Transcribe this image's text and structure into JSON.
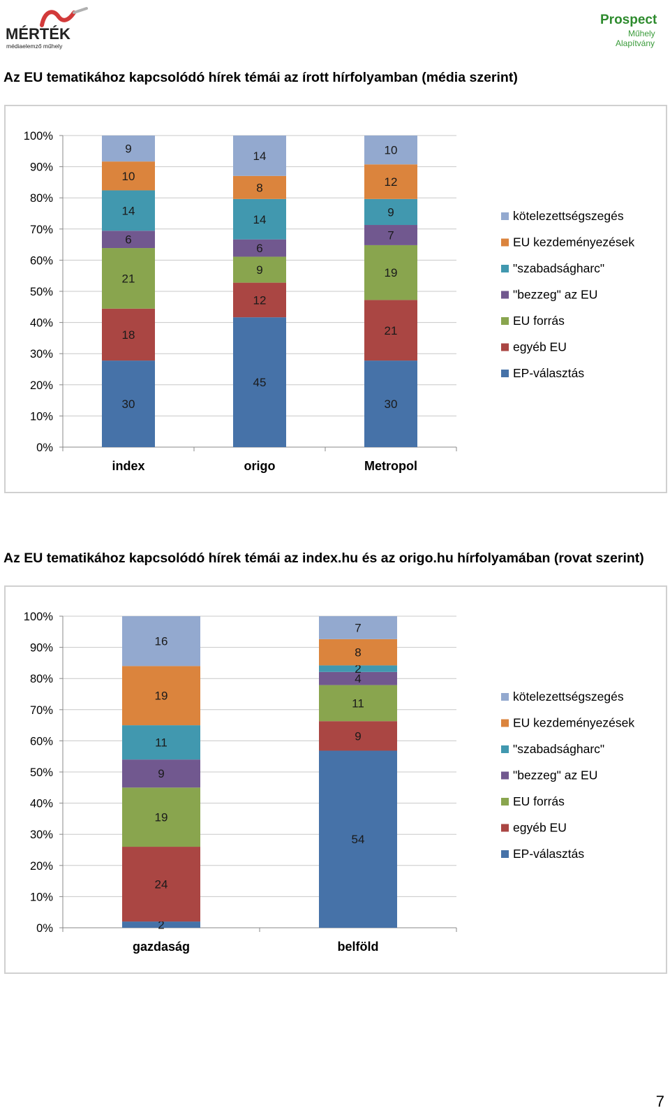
{
  "logos": {
    "left": {
      "name": "MÉRTÉK",
      "sub": "médiaelemző műhely"
    },
    "right": {
      "name": "Prospect",
      "line2": "Műhely",
      "line3": "Alapítvány"
    }
  },
  "colors": {
    "EP-választás": "#4672a8",
    "egyéb EU": "#aa4643",
    "EU forrás": "#89a54e",
    "\"bezzeg\" az EU": "#71588f",
    "\"szabadságharc\"": "#4198af",
    "EU kezdeményezések": "#db843d",
    "kötelezettségszegés": "#93a9cf"
  },
  "page_number": "7",
  "chart_data": [
    {
      "type": "bar",
      "stacked": "percent",
      "title": "Az EU tematikához kapcsolódó hírek témái az írott hírfolyamban (média szerint)",
      "categories": [
        "index",
        "origo",
        "Metropol"
      ],
      "ytick_labels": [
        "0%",
        "10%",
        "20%",
        "30%",
        "40%",
        "50%",
        "60%",
        "70%",
        "80%",
        "90%",
        "100%"
      ],
      "ylim": [
        0,
        100
      ],
      "legend_position": "right",
      "series": [
        {
          "name": "EP-választás",
          "values": [
            30,
            45,
            30
          ]
        },
        {
          "name": "egyéb EU",
          "values": [
            18,
            12,
            21
          ]
        },
        {
          "name": "EU forrás",
          "values": [
            21,
            9,
            19
          ]
        },
        {
          "name": "\"bezzeg\" az EU",
          "values": [
            6,
            6,
            7
          ]
        },
        {
          "name": "\"szabadságharc\"",
          "values": [
            14,
            14,
            9
          ]
        },
        {
          "name": "EU kezdeményezések",
          "values": [
            10,
            8,
            12
          ]
        },
        {
          "name": "kötelezettségszegés",
          "values": [
            9,
            14,
            10
          ]
        }
      ],
      "legend": [
        "kötelezettségszegés",
        "EU kezdeményezések",
        "\"szabadságharc\"",
        "\"bezzeg\" az EU",
        "EU forrás",
        "egyéb EU",
        "EP-választás"
      ]
    },
    {
      "type": "bar",
      "stacked": "percent",
      "title": "Az EU tematikához kapcsolódó hírek témái az index.hu és az origo.hu hírfolyamában (rovat szerint)",
      "categories": [
        "gazdaság",
        "belföld"
      ],
      "ytick_labels": [
        "0%",
        "10%",
        "20%",
        "30%",
        "40%",
        "50%",
        "60%",
        "70%",
        "80%",
        "90%",
        "100%"
      ],
      "ylim": [
        0,
        100
      ],
      "legend_position": "right",
      "series": [
        {
          "name": "EP-választás",
          "values": [
            2,
            54
          ]
        },
        {
          "name": "egyéb EU",
          "values": [
            24,
            9
          ]
        },
        {
          "name": "EU forrás",
          "values": [
            19,
            11
          ]
        },
        {
          "name": "\"bezzeg\" az EU",
          "values": [
            9,
            4
          ]
        },
        {
          "name": "\"szabadságharc\"",
          "values": [
            11,
            2
          ]
        },
        {
          "name": "EU kezdeményezések",
          "values": [
            19,
            8
          ]
        },
        {
          "name": "kötelezettségszegés",
          "values": [
            16,
            7
          ]
        }
      ],
      "legend": [
        "kötelezettségszegés",
        "EU kezdeményezések",
        "\"szabadságharc\"",
        "\"bezzeg\" az EU",
        "EU forrás",
        "egyéb EU",
        "EP-választás"
      ]
    }
  ]
}
